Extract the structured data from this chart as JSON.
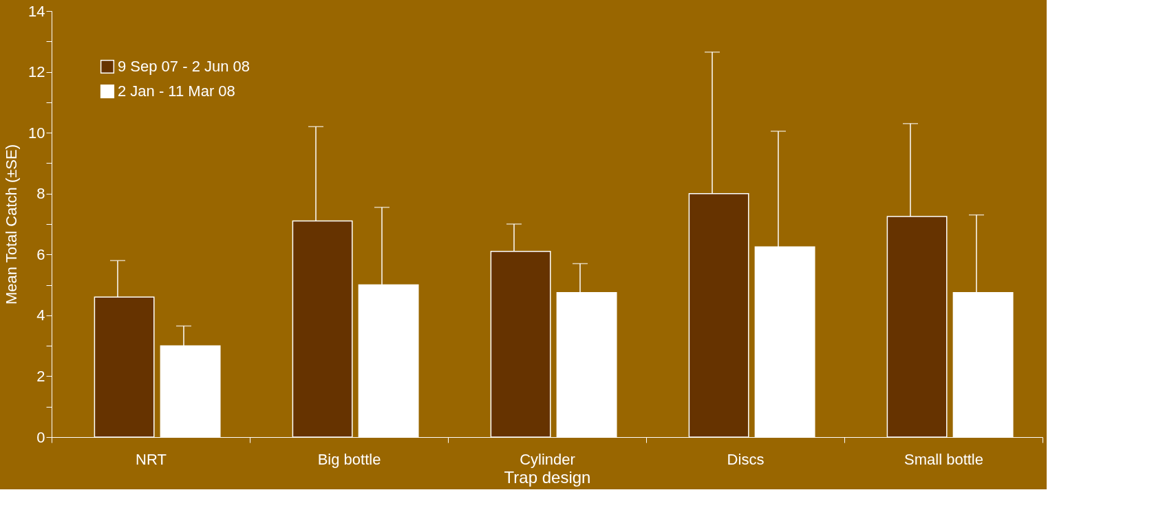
{
  "chart_data": {
    "type": "bar",
    "xlabel": "Trap design",
    "ylabel": "Mean Total Catch (±SE)",
    "categories": [
      "NRT",
      "Big bottle",
      "Cylinder",
      "Discs",
      "Small  bottle"
    ],
    "series": [
      {
        "name": "9 Sep 07 - 2 Jun 08",
        "color": "#663300",
        "values": [
          4.6,
          7.1,
          6.1,
          8.0,
          7.25
        ],
        "errors": [
          [
            4.6,
            5.8
          ],
          [
            7.1,
            10.2
          ],
          [
            6.1,
            7.0
          ],
          [
            8.0,
            12.65
          ],
          [
            7.25,
            10.3
          ]
        ]
      },
      {
        "name": "2 Jan - 11 Mar 08",
        "color": "#ffffff",
        "values": [
          3.0,
          5.0,
          4.75,
          6.25,
          4.75
        ],
        "errors": [
          [
            3.0,
            3.65
          ],
          [
            5.0,
            7.55
          ],
          [
            4.75,
            5.7
          ],
          [
            6.25,
            10.05
          ],
          [
            4.75,
            7.3
          ]
        ]
      }
    ],
    "ylim": [
      0,
      14
    ],
    "yticks": [
      0,
      {
        "value": 1,
        "label": null
      },
      2,
      {
        "value": 3,
        "label": null
      },
      4,
      {
        "value": 5,
        "label": null
      },
      6,
      {
        "value": 7,
        "label": null
      },
      8,
      {
        "value": 9,
        "label": null
      },
      10,
      {
        "value": 11,
        "label": null
      },
      12,
      {
        "value": 13,
        "label": null
      },
      14
    ],
    "grid": false,
    "legend": "top left"
  }
}
